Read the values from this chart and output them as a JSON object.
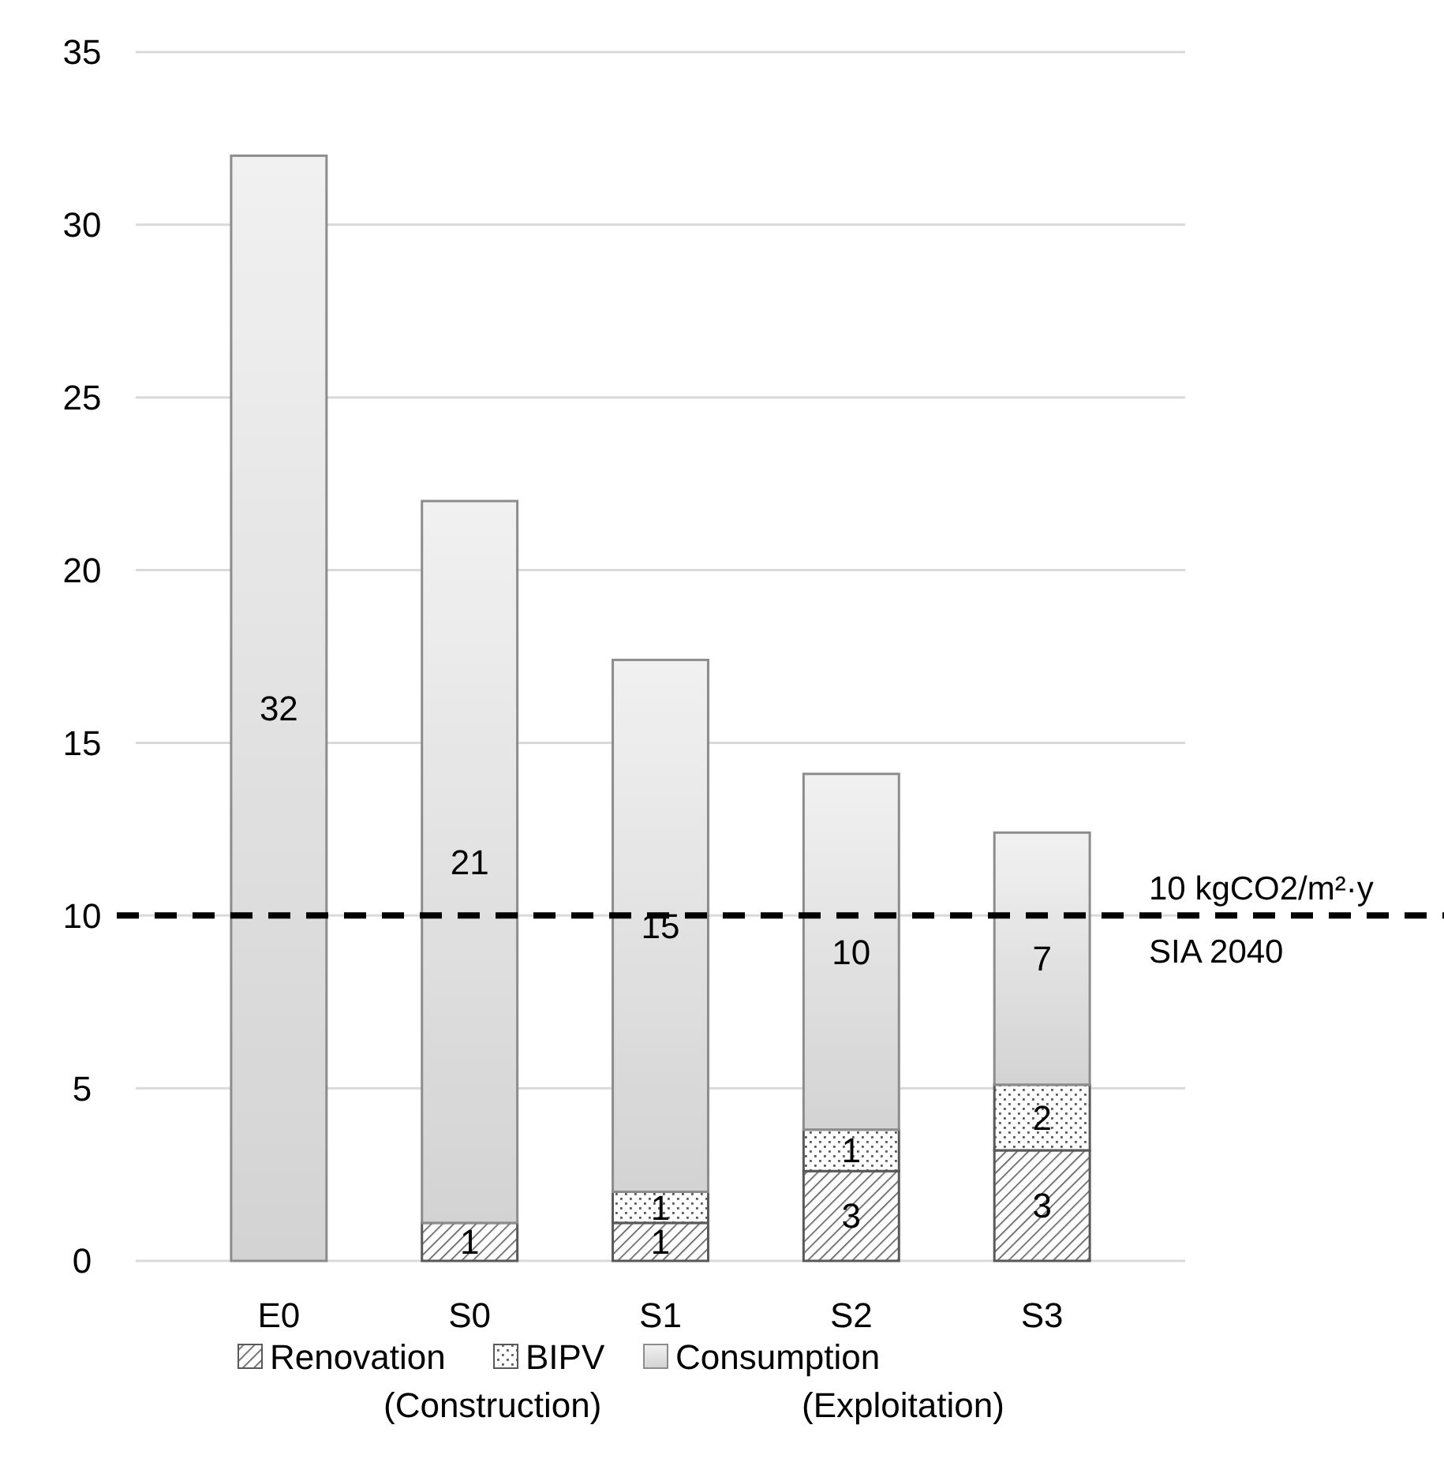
{
  "chart_data": {
    "type": "bar",
    "stacked": true,
    "categories": [
      "E0",
      "S0",
      "S1",
      "S2",
      "S3"
    ],
    "series": [
      {
        "name": "Renovation",
        "color": "#595959",
        "values": [
          null,
          1.1,
          1.1,
          2.6,
          3.2
        ],
        "value_labels": [
          null,
          "1",
          "1",
          "3",
          "3"
        ]
      },
      {
        "name": "BIPV",
        "color": "#595959",
        "values": [
          null,
          null,
          0.9,
          1.2,
          1.9
        ],
        "value_labels": [
          null,
          null,
          "1",
          "1",
          "2"
        ]
      },
      {
        "name": "Consumption",
        "color": "#8c8c8c",
        "values": [
          32,
          20.9,
          15.4,
          10.3,
          7.3
        ],
        "value_labels": [
          "32",
          "21",
          "15",
          "10",
          "7"
        ]
      }
    ],
    "ylim": [
      0,
      35
    ],
    "yticks": [
      0,
      5,
      10,
      15,
      20,
      25,
      30,
      35
    ],
    "grid": "y",
    "legend": "bottom",
    "ref_lines": [
      {
        "axis": "y",
        "value": 10,
        "label": "10 kgCO2/m²·y\nSIA 2040",
        "color": "#000000",
        "line_style": "dashed"
      }
    ],
    "annotations": [
      "(Construction)",
      "(Exploitation)"
    ]
  }
}
